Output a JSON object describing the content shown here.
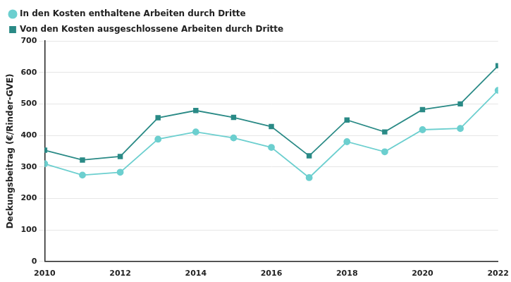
{
  "chart_data": {
    "type": "line",
    "y_label": "Deckungsbeitrag (€/Rinder-GVE)",
    "x": [
      2010,
      2011,
      2012,
      2013,
      2014,
      2015,
      2016,
      2017,
      2018,
      2019,
      2020,
      2021,
      2022
    ],
    "series": [
      {
        "name": "In den Kosten enthaltene Arbeiten durch Dritte",
        "color": "#6ccfcf",
        "marker": "circle",
        "line_style": "solid",
        "values": [
          310,
          274,
          283,
          388,
          411,
          392,
          362,
          266,
          380,
          348,
          418,
          422,
          543
        ]
      },
      {
        "name": "Von den Kosten ausgeschlossene Arbeiten durch Dritte",
        "color": "#2a8a86",
        "marker": "square",
        "line_style": "solid",
        "values": [
          353,
          322,
          333,
          456,
          479,
          457,
          428,
          335,
          449,
          411,
          482,
          500,
          621
        ]
      }
    ],
    "xlim": [
      2010,
      2022
    ],
    "xticks": [
      2010,
      2012,
      2014,
      2016,
      2018,
      2020,
      2022
    ],
    "ylim": [
      0,
      700
    ],
    "yticks": [
      0,
      100,
      200,
      300,
      400,
      500,
      600,
      700
    ],
    "grid": true,
    "legend": "top"
  }
}
